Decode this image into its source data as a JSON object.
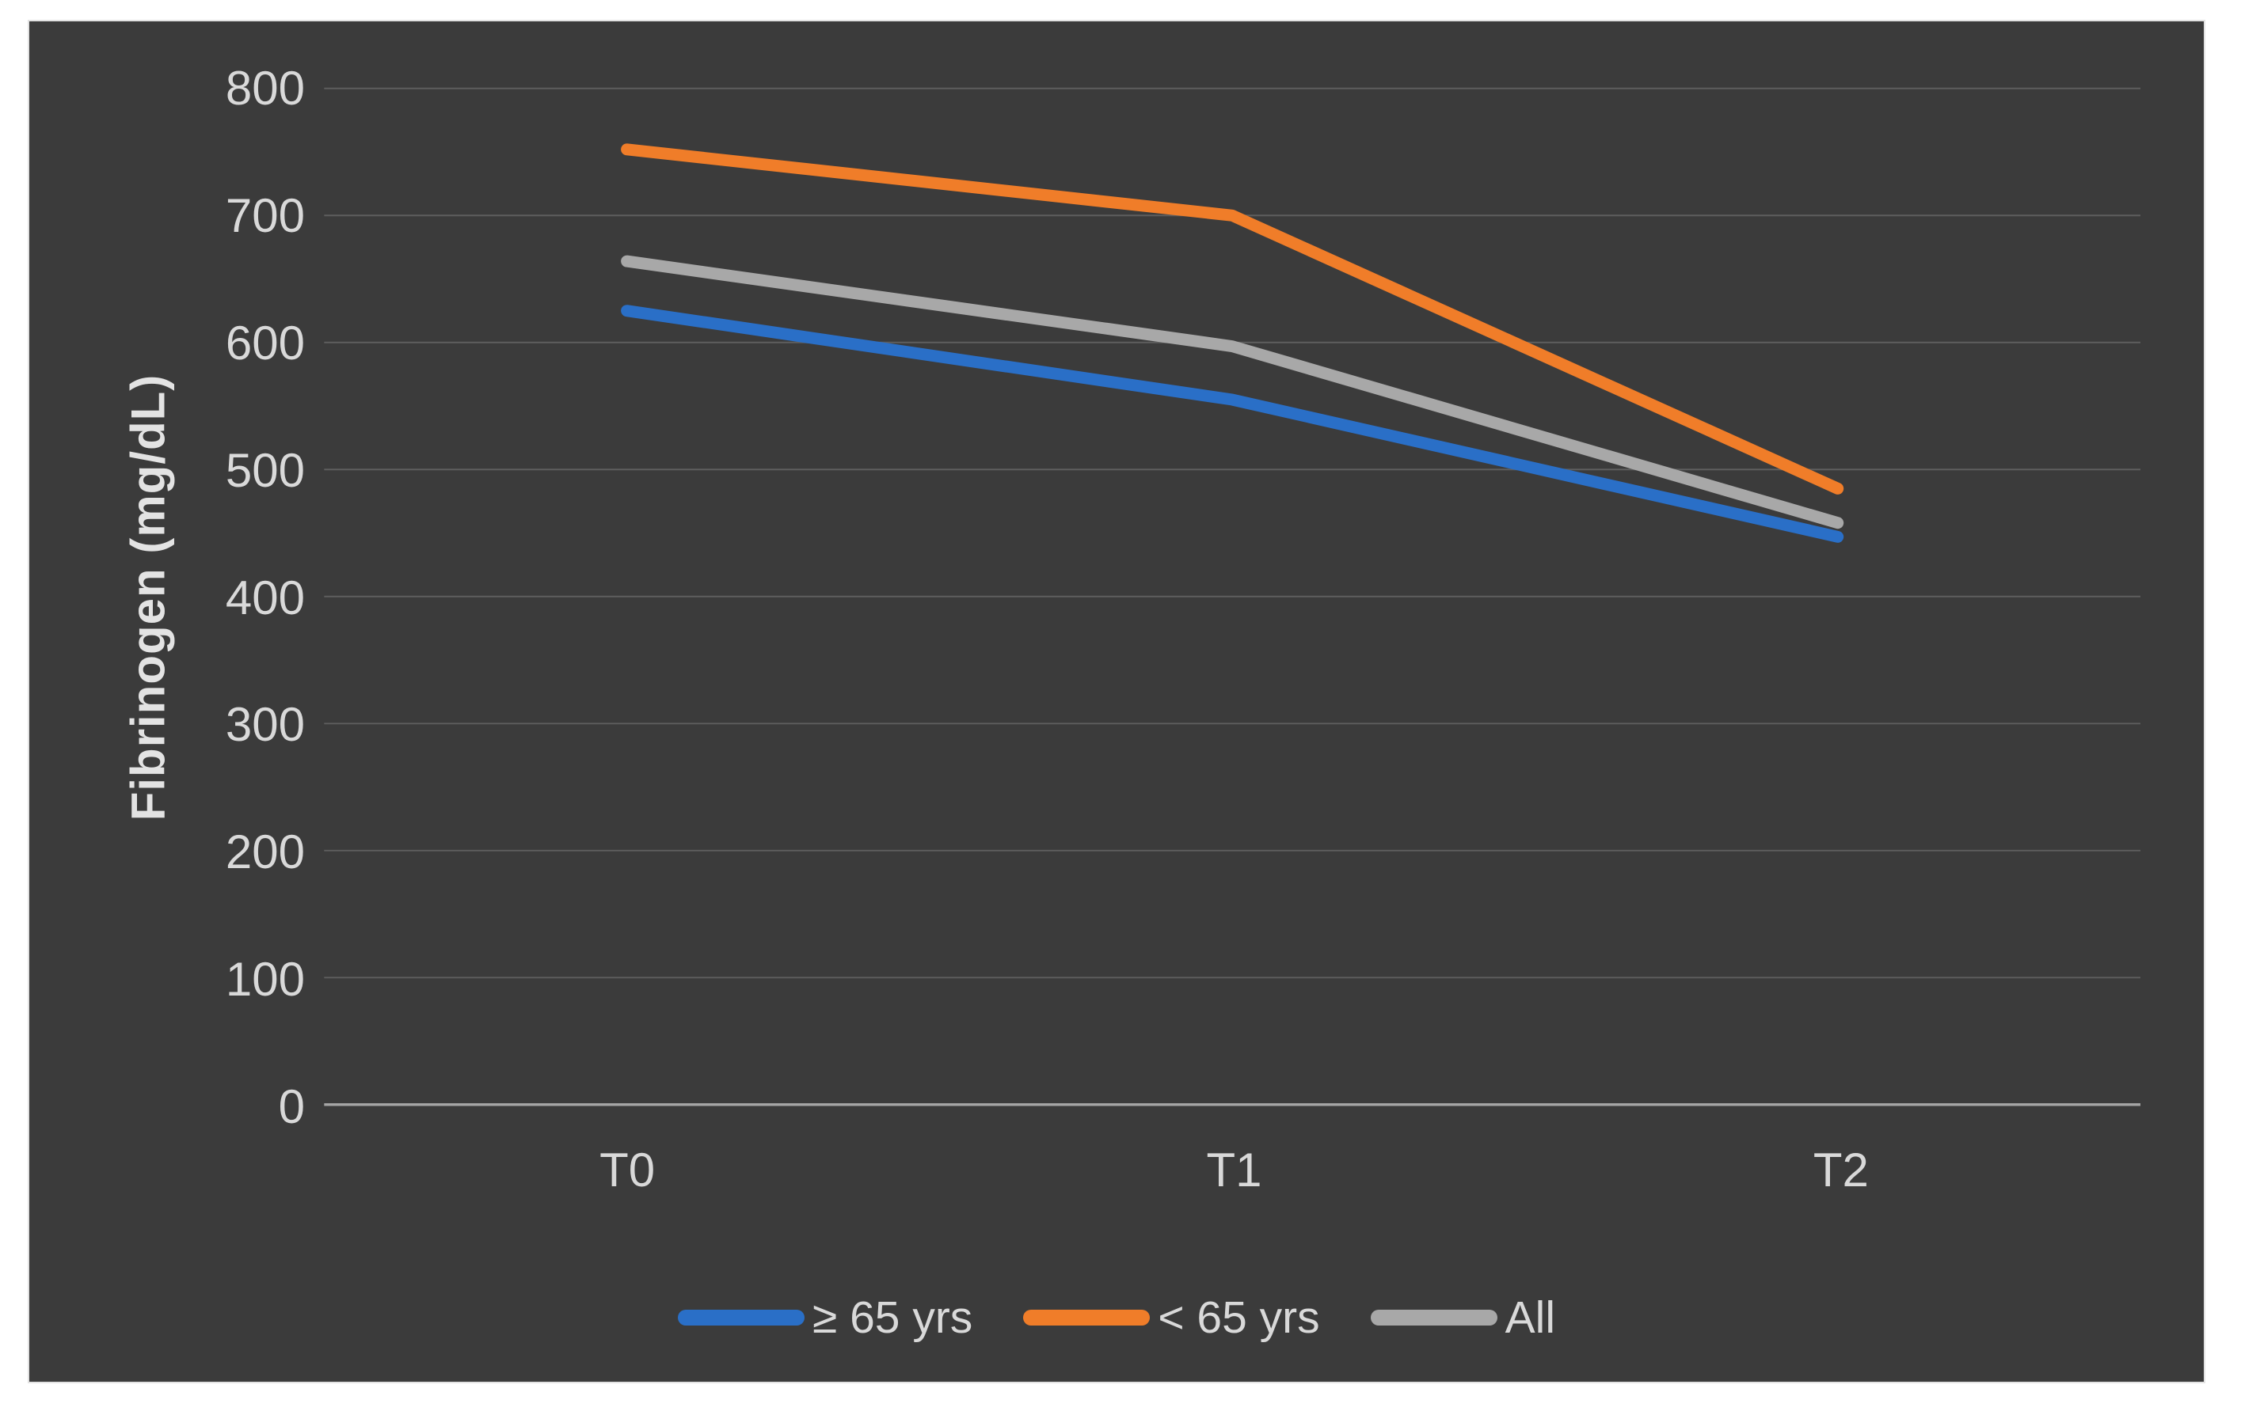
{
  "figure": {
    "background": "#FFFFFF",
    "plot_background": "#3B3B3B"
  },
  "chart_data": {
    "type": "line",
    "title": "",
    "xlabel": "",
    "ylabel": "Fibrinogen (mg/dL)",
    "categories": [
      "T0",
      "T1",
      "T2"
    ],
    "series": [
      {
        "name": "≥ 65 yrs",
        "color": "#2A6FC7",
        "values": [
          625,
          555,
          447
        ]
      },
      {
        "name": "< 65 yrs",
        "color": "#F07D29",
        "values": [
          752,
          700,
          485
        ]
      },
      {
        "name": "All",
        "color": "#A8A8A8",
        "values": [
          664,
          597,
          458
        ]
      }
    ],
    "ylim": [
      0,
      800
    ],
    "ytick_step": 100,
    "grid": true,
    "legend_position": "bottom",
    "gridline_color": "#5E5E5E",
    "axis_line_color": "#A6A6A6",
    "text_color": "#D9D9D9"
  }
}
